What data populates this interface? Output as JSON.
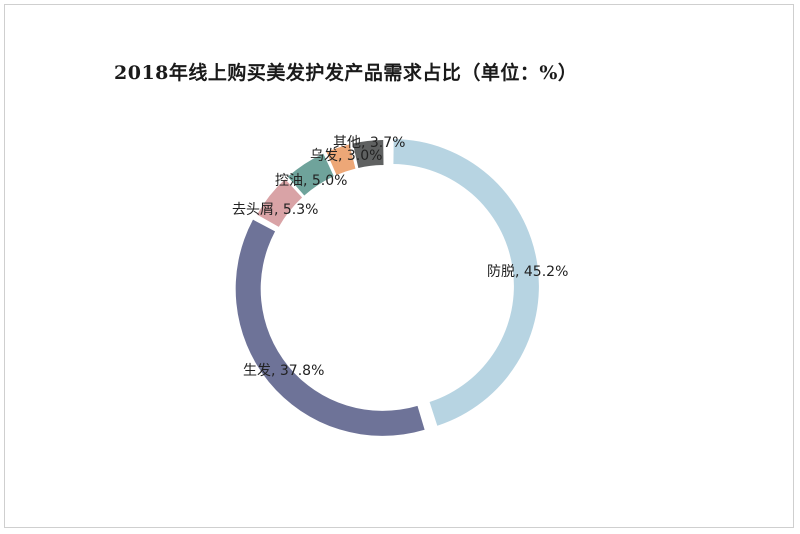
{
  "chart_data": {
    "type": "pie",
    "title": "2018年线上购买美发护发产品需求占比（单位：%）",
    "slices": [
      {
        "name": "防脱",
        "value": 45.2,
        "label": "防脱, 45.2%",
        "color": "#b7d4e2"
      },
      {
        "name": "生发",
        "value": 37.8,
        "label": "生发, 37.8%",
        "color": "#6e7398"
      },
      {
        "name": "去头屑",
        "value": 5.3,
        "label": "去头屑, 5.3%",
        "color": "#d9a3a6"
      },
      {
        "name": "控油",
        "value": 5.0,
        "label": "控油, 5.0%",
        "color": "#6fa39b"
      },
      {
        "name": "乌发",
        "value": 3.0,
        "label": "乌发, 3.0%",
        "color": "#eda777"
      },
      {
        "name": "其他",
        "value": 3.7,
        "label": "其他, 3.7%",
        "color": "#5f6161"
      }
    ]
  }
}
